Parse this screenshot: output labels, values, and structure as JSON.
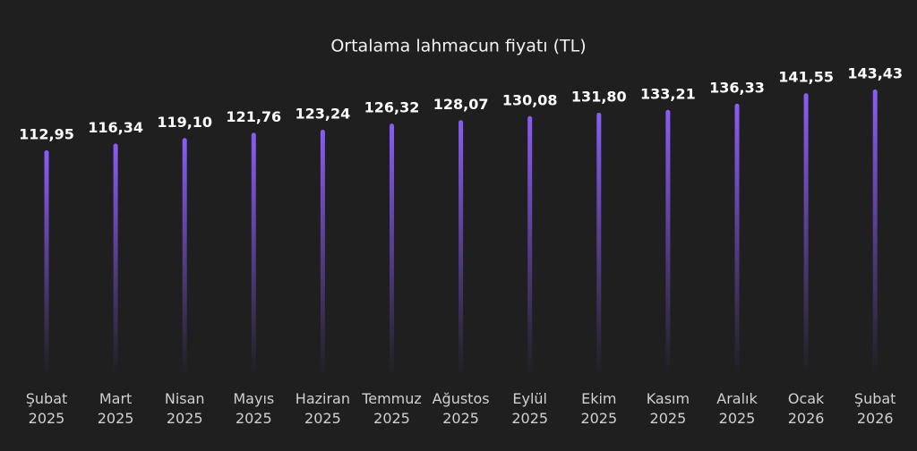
{
  "chart_data": {
    "type": "bar",
    "title": "Ortalama lahmacun fiyatı (TL)",
    "categories": [
      "Şubat 2025",
      "Mart 2025",
      "Nisan 2025",
      "Mayıs 2025",
      "Haziran 2025",
      "Temmuz 2025",
      "Ağustos 2025",
      "Eylül 2025",
      "Ekim 2025",
      "Kasım 2025",
      "Aralık 2025",
      "Ocak 2026",
      "Şubat 2026"
    ],
    "values": [
      112.95,
      116.34,
      119.1,
      121.76,
      123.24,
      126.32,
      128.07,
      130.08,
      131.8,
      133.21,
      136.33,
      141.55,
      143.43
    ],
    "value_labels": [
      "112,95",
      "116,34",
      "119,10",
      "121,76",
      "123,24",
      "126,32",
      "128,07",
      "130,08",
      "131,80",
      "133,21",
      "136,33",
      "141,55",
      "143,43"
    ],
    "color": "#8b5cf6"
  }
}
